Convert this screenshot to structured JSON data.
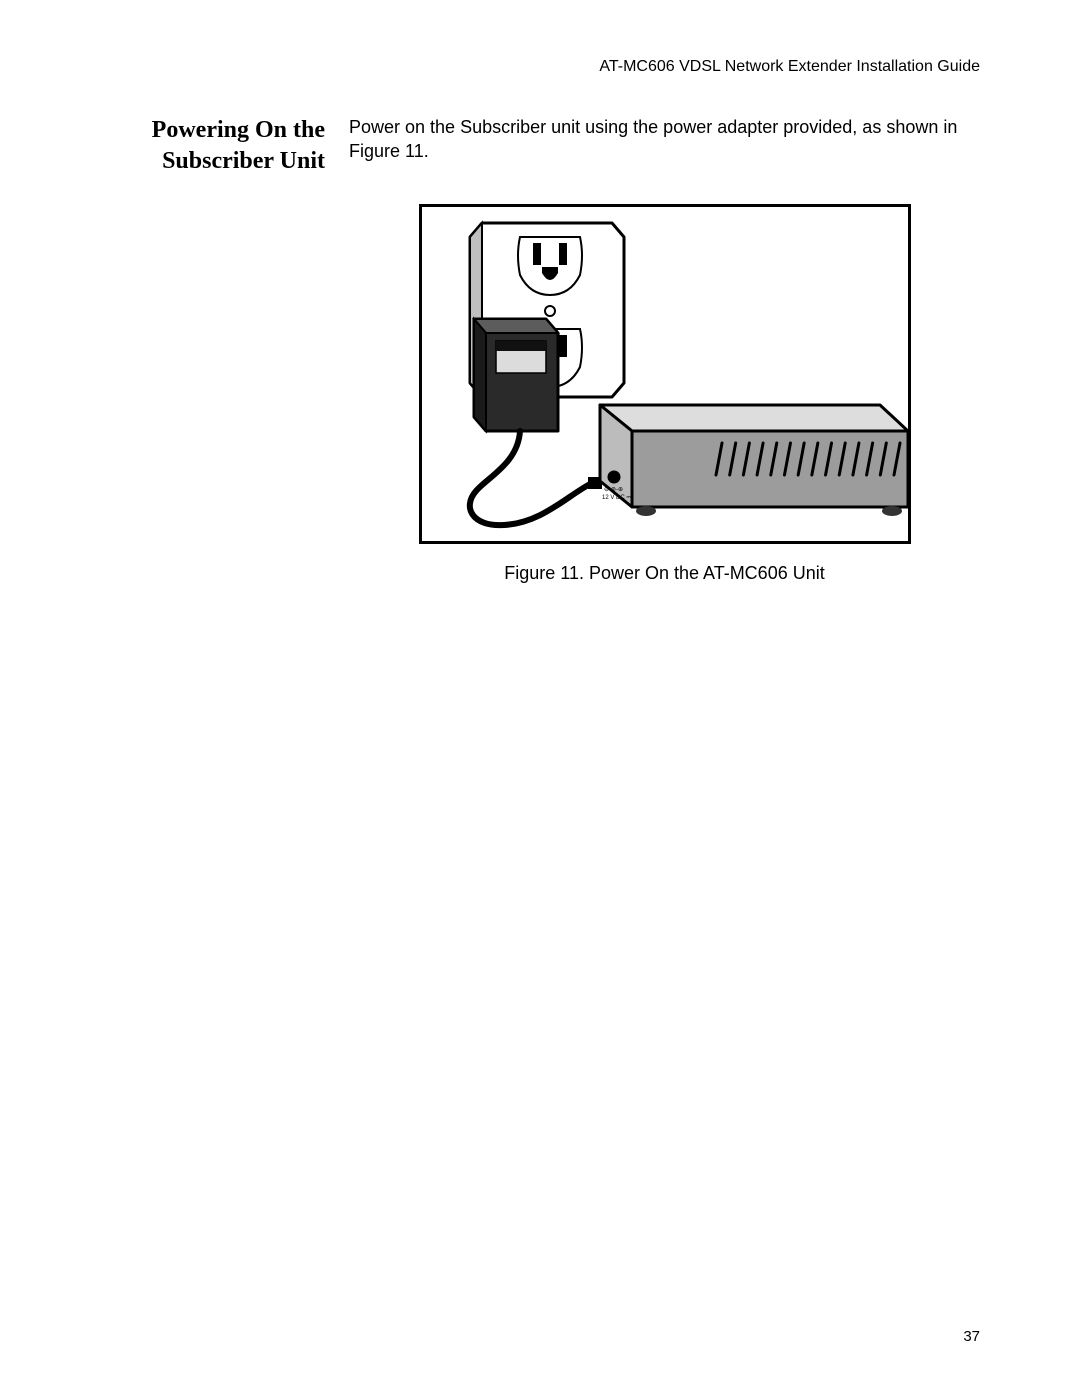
{
  "page": {
    "running_header": "AT-MC606 VDSL Network Extender Installation Guide",
    "page_number": "37"
  },
  "section": {
    "side_heading_line1": "Powering On the",
    "side_heading_line2": "Subscriber Unit",
    "body_paragraph": "Power on the Subscriber unit using the power adapter provided, as shown in Figure 11.",
    "figure_caption": "Figure 11. Power On the AT-MC606 Unit"
  },
  "figure": {
    "type": "diagram",
    "description": "Wall power outlet with an AC adapter plugged in, cord leading to the DC input on the back of an AT-MC606 unit drawn in isometric view.",
    "colors": {
      "stroke": "#000000",
      "outlet_plate": "#ffffff",
      "outlet_shadow": "#bfbfbf",
      "adapter_top": "#5c5c5c",
      "adapter_body": "#2a2a2a",
      "adapter_label": "#dcdcdc",
      "adapter_label_bar": "#111111",
      "cord": "#000000",
      "device_top": "#dddddd",
      "device_front": "#bcbcbc",
      "device_side": "#9c9c9c",
      "device_feet": "#333333",
      "dc_port_label": "#000000"
    },
    "stroke_width_main": 3,
    "stroke_width_detail": 2,
    "vent_slot_count": 14,
    "dc_label_line1": "⊖-⊛-⊕",
    "dc_label_line2": "12 V DC ⎓"
  }
}
